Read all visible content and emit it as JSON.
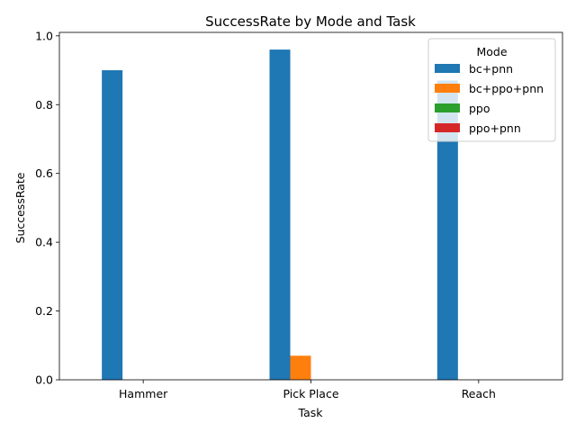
{
  "chart_data": {
    "type": "bar",
    "title": "SuccessRate by Mode and Task",
    "xlabel": "Task",
    "ylabel": "SuccessRate",
    "categories": [
      "Hammer",
      "Pick Place",
      "Reach"
    ],
    "ylim": [
      0,
      1.01
    ],
    "yticks": [
      0.0,
      0.2,
      0.4,
      0.6,
      0.8,
      1.0
    ],
    "ytick_labels": [
      "0.0",
      "0.2",
      "0.4",
      "0.6",
      "0.8",
      "1.0"
    ],
    "grid": false,
    "legend": {
      "title": "Mode",
      "placement": "top-right"
    },
    "series": [
      {
        "name": "bc+pnn",
        "color": "#1f77b4",
        "values": [
          0.9,
          0.96,
          0.87
        ]
      },
      {
        "name": "bc+ppo+pnn",
        "color": "#ff7f0e",
        "values": [
          0.0,
          0.07,
          0.0
        ]
      },
      {
        "name": "ppo",
        "color": "#2ca02c",
        "values": [
          0.0,
          0.0,
          0.0
        ]
      },
      {
        "name": "ppo+pnn",
        "color": "#d62728",
        "values": [
          0.0,
          0.0,
          0.0
        ]
      }
    ]
  }
}
